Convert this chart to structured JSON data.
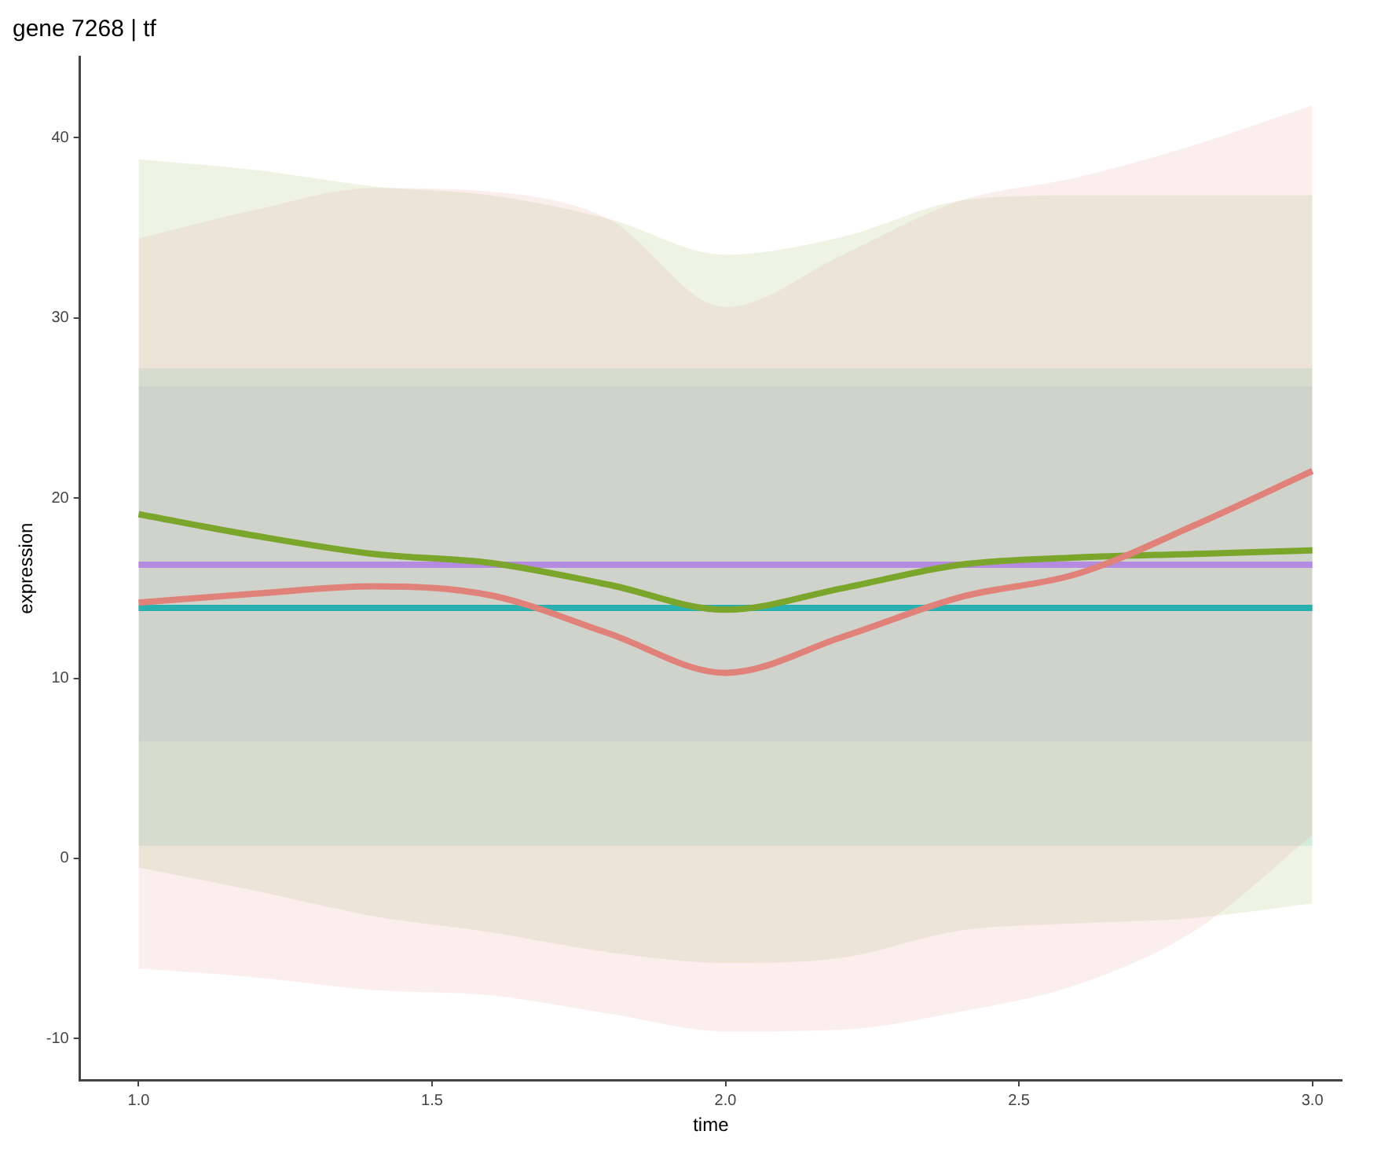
{
  "chart_data": {
    "type": "line",
    "title": "gene 7268 | tf",
    "xlabel": "time",
    "ylabel": "expression",
    "x": [
      1.0,
      1.2,
      1.4,
      1.6,
      1.8,
      2.0,
      2.2,
      2.4,
      2.6,
      2.8,
      3.0
    ],
    "series": [
      {
        "color": "#e0827a",
        "values": [
          14.2,
          14.7,
          15.1,
          14.6,
          12.5,
          10.3,
          12.3,
          14.5,
          15.8,
          18.5,
          21.5
        ],
        "lower": [
          -6.1,
          -6.6,
          -7.3,
          -7.6,
          -8.6,
          -9.6,
          -9.5,
          -8.5,
          -7.0,
          -4.0,
          1.3
        ],
        "upper": [
          34.4,
          36.0,
          37.2,
          37.0,
          35.5,
          30.6,
          33.5,
          36.5,
          37.8,
          39.6,
          41.8
        ]
      },
      {
        "color": "#7ca52c",
        "values": [
          19.1,
          17.9,
          16.9,
          16.4,
          15.2,
          13.8,
          15.0,
          16.3,
          16.7,
          16.9,
          17.1
        ],
        "lower": [
          -0.5,
          -1.8,
          -3.2,
          -4.1,
          -5.2,
          -5.8,
          -5.5,
          -4.0,
          -3.6,
          -3.3,
          -2.5
        ],
        "upper": [
          38.8,
          38.2,
          37.3,
          36.8,
          35.5,
          33.5,
          34.5,
          36.5,
          36.8,
          36.8,
          36.8
        ]
      },
      {
        "color": "#2bb0b0",
        "values": [
          13.9,
          13.9,
          13.9,
          13.9,
          13.9,
          13.9,
          13.9,
          13.9,
          13.9,
          13.9,
          13.9
        ],
        "lower": [
          0.7,
          0.7,
          0.7,
          0.7,
          0.7,
          0.7,
          0.7,
          0.7,
          0.7,
          0.7,
          0.7
        ],
        "upper": [
          27.2,
          27.2,
          27.2,
          27.2,
          27.2,
          27.2,
          27.2,
          27.2,
          27.2,
          27.2,
          27.2
        ]
      },
      {
        "color": "#b48be0",
        "values": [
          16.3,
          16.3,
          16.3,
          16.3,
          16.3,
          16.3,
          16.3,
          16.3,
          16.3,
          16.3,
          16.3
        ],
        "lower": [
          6.5,
          6.5,
          6.5,
          6.5,
          6.5,
          6.5,
          6.5,
          6.5,
          6.5,
          6.5,
          6.5
        ],
        "upper": [
          26.2,
          26.2,
          26.2,
          26.2,
          26.2,
          26.2,
          26.2,
          26.2,
          26.2,
          26.2,
          26.2
        ]
      }
    ],
    "xlim": [
      0.9,
      3.05
    ],
    "xticks": [
      {
        "value": 1,
        "label": "1.0"
      },
      {
        "value": 1.5,
        "label": "1.5"
      },
      {
        "value": 2,
        "label": "2.0"
      },
      {
        "value": 2.5,
        "label": "2.5"
      },
      {
        "value": 3,
        "label": "3.0"
      }
    ],
    "ylim": [
      -12.3,
      44.5
    ],
    "yticks": [
      -10,
      0,
      10,
      20,
      30,
      40
    ],
    "grid": false,
    "legend": false,
    "marker": "none",
    "line_style": "solid"
  }
}
